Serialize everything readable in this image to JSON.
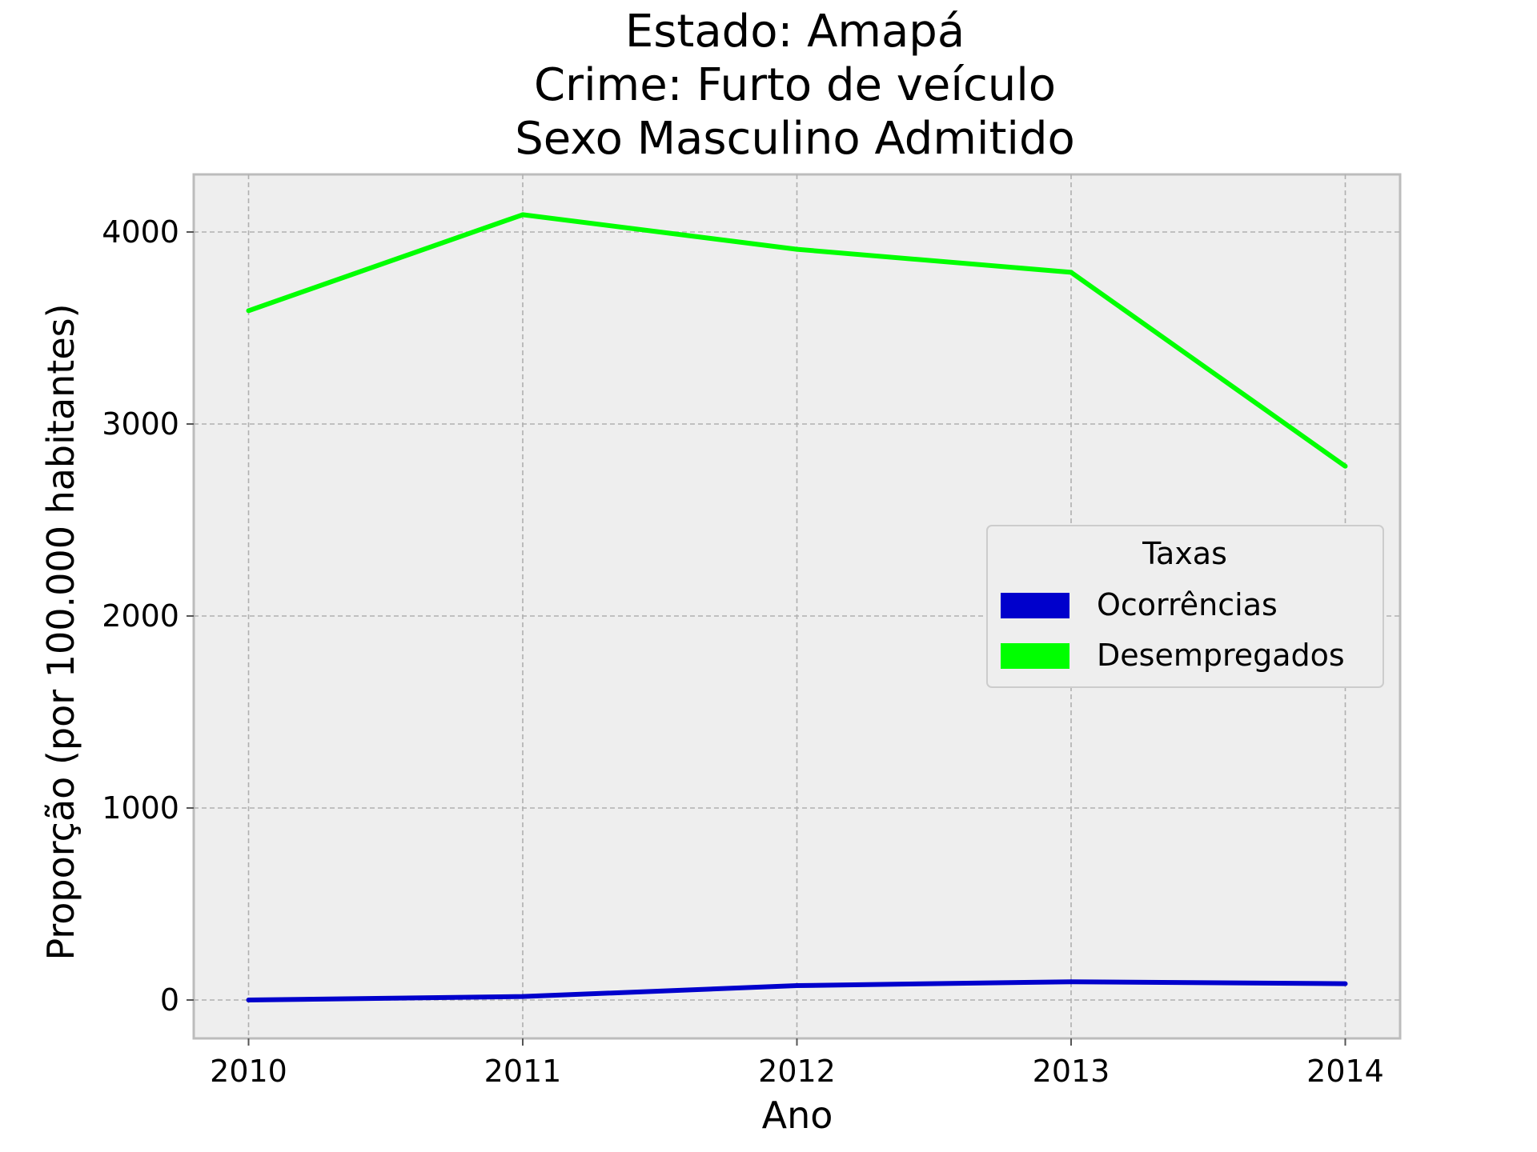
{
  "chart_data": {
    "type": "line",
    "title_lines": [
      "Estado: Amapá",
      "Crime: Furto de veículo",
      "Sexo  Masculino   Admitido"
    ],
    "xlabel": "Ano",
    "ylabel": "Proporção (por 100.000 habitantes)",
    "x": [
      2010,
      2011,
      2012,
      2013,
      2014
    ],
    "x_ticks": [
      "2010",
      "2011",
      "2012",
      "2013",
      "2014"
    ],
    "y_ticks": [
      "0",
      "1000",
      "2000",
      "3000",
      "4000"
    ],
    "y_tick_values": [
      0,
      1000,
      2000,
      3000,
      4000
    ],
    "xlim": [
      2009.8,
      2014.2
    ],
    "ylim": [
      -200,
      4300
    ],
    "grid": true,
    "legend": {
      "title": "Taxas",
      "placement": "center-right"
    },
    "series": [
      {
        "name": "Ocorrências",
        "color": "#0000cc",
        "values": [
          0,
          18,
          75,
          95,
          85
        ]
      },
      {
        "name": "Desempregados",
        "color": "#00ff00",
        "values": [
          3590,
          4090,
          3910,
          3790,
          2780
        ]
      }
    ]
  }
}
